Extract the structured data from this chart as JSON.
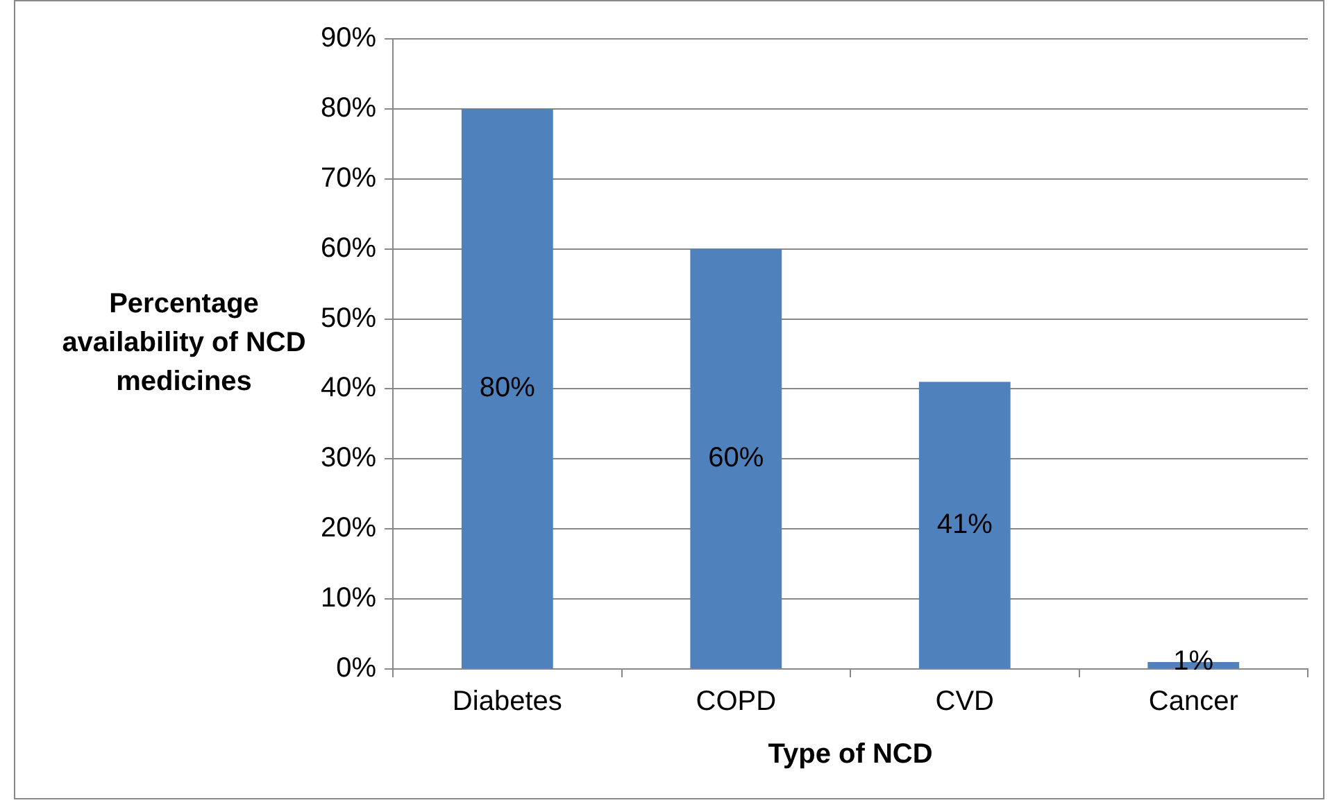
{
  "chart_data": {
    "type": "bar",
    "xlabel": "Type of NCD",
    "ylabel": "Percentage availability of NCD medicines",
    "categories": [
      "Diabetes",
      "COPD",
      "CVD",
      "Cancer"
    ],
    "values": [
      80,
      60,
      41,
      1
    ],
    "color": "#4f81bd",
    "value_labels": [
      "80%",
      "60%",
      "41%",
      "1%"
    ],
    "ylim": [
      0,
      90
    ],
    "yticks": [
      {
        "value": 0,
        "label": "0%"
      },
      {
        "value": 10,
        "label": "10%"
      },
      {
        "value": 20,
        "label": "20%"
      },
      {
        "value": 30,
        "label": "30%"
      },
      {
        "value": 40,
        "label": "40%"
      },
      {
        "value": 50,
        "label": "50%"
      },
      {
        "value": 60,
        "label": "60%"
      },
      {
        "value": 70,
        "label": "70%"
      },
      {
        "value": 80,
        "label": "80%"
      },
      {
        "value": 90,
        "label": "90%"
      }
    ],
    "grid": "y",
    "legend": false
  }
}
